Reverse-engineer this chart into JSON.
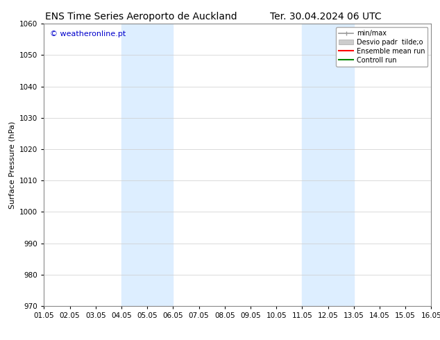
{
  "title_left": "ENS Time Series Aeroporto de Auckland",
  "title_right": "Ter. 30.04.2024 06 UTC",
  "ylabel": "Surface Pressure (hPa)",
  "xlim": [
    0,
    15
  ],
  "ylim": [
    970,
    1060
  ],
  "yticks": [
    970,
    980,
    990,
    1000,
    1010,
    1020,
    1030,
    1040,
    1050,
    1060
  ],
  "xtick_labels": [
    "01.05",
    "02.05",
    "03.05",
    "04.05",
    "05.05",
    "06.05",
    "07.05",
    "08.05",
    "09.05",
    "10.05",
    "11.05",
    "12.05",
    "13.05",
    "14.05",
    "15.05",
    "16.05"
  ],
  "shaded_bands": [
    {
      "xmin": 3.0,
      "xmax": 5.0
    },
    {
      "xmin": 10.0,
      "xmax": 12.0
    }
  ],
  "shaded_color": "#ddeeff",
  "watermark": "© weatheronline.pt",
  "watermark_color": "#0000cc",
  "legend_entries": [
    {
      "label": "min/max",
      "color": "#aaaaaa",
      "lw": 1.5
    },
    {
      "label": "Desvio padr  tilde;o",
      "color": "#cccccc",
      "lw": 8
    },
    {
      "label": "Ensemble mean run",
      "color": "#ff0000",
      "lw": 1.5
    },
    {
      "label": "Controll run",
      "color": "#008800",
      "lw": 1.5
    }
  ],
  "bg_color": "#ffffff",
  "plot_bg_color": "#ffffff",
  "title_fontsize": 10,
  "axis_fontsize": 8,
  "tick_fontsize": 7.5,
  "watermark_fontsize": 8
}
